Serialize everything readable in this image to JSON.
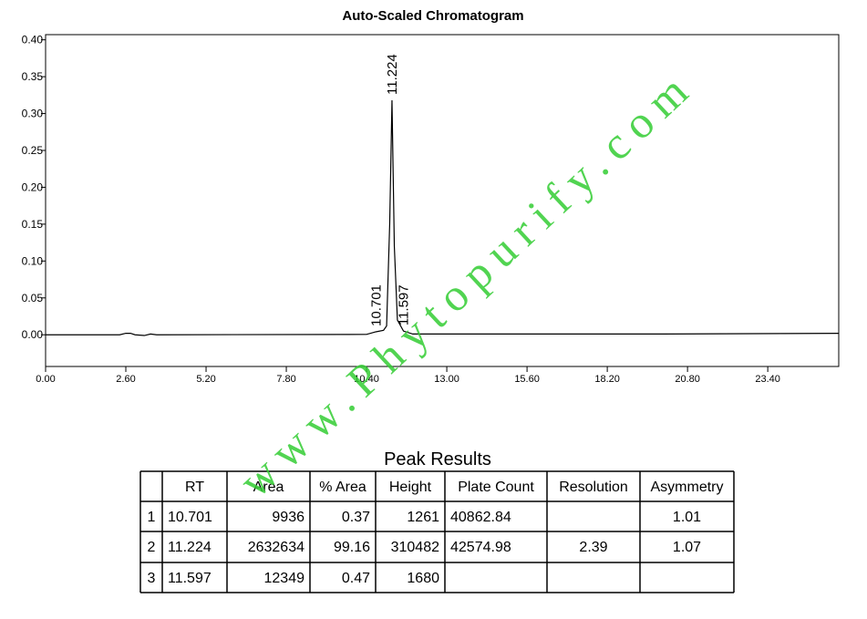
{
  "chart_data": {
    "type": "line",
    "title": "Auto-Scaled Chromatogram",
    "x": [
      0,
      2.4,
      2.6,
      2.75,
      2.9,
      3.2,
      3.4,
      3.6,
      10.4,
      10.701,
      10.95,
      11.05,
      11.15,
      11.224,
      11.3,
      11.4,
      11.597,
      11.9,
      15,
      20,
      25.7
    ],
    "series": [
      {
        "color": "#000000",
        "values": [
          0,
          0,
          0.002,
          0.002,
          0,
          -0.001,
          0.001,
          0,
          0.0005,
          0.004,
          0.006,
          0.012,
          0.15,
          0.318,
          0.12,
          0.02,
          0.005,
          0.001,
          0.001,
          0.001,
          0.002
        ]
      }
    ],
    "xlim": [
      0,
      25.7
    ],
    "ylim": [
      -0.043,
      0.407
    ],
    "xticks": [
      {
        "value": 0,
        "label": "0.00"
      },
      {
        "value": 2.6,
        "label": "2.60"
      },
      {
        "value": 5.2,
        "label": "5.20"
      },
      {
        "value": 7.8,
        "label": "7.80"
      },
      {
        "value": 10.4,
        "label": "10.40"
      },
      {
        "value": 13,
        "label": "13.00"
      },
      {
        "value": 15.6,
        "label": "15.60"
      },
      {
        "value": 18.2,
        "label": "18.20"
      },
      {
        "value": 20.8,
        "label": "20.80"
      },
      {
        "value": 23.4,
        "label": "23.40"
      }
    ],
    "yticks": [
      {
        "value": 0,
        "label": "0.00"
      },
      {
        "value": 0.05,
        "label": "0.05"
      },
      {
        "value": 0.1,
        "label": "0.10"
      },
      {
        "value": 0.15,
        "label": "0.15"
      },
      {
        "value": 0.2,
        "label": "0.20"
      },
      {
        "value": 0.25,
        "label": "0.25"
      },
      {
        "value": 0.3,
        "label": "0.30"
      },
      {
        "value": 0.35,
        "label": "0.35"
      },
      {
        "value": 0.4,
        "label": "0.40"
      }
    ],
    "peak_labels": [
      10.701,
      11.224,
      11.597
    ],
    "peak_heights": [
      0.004,
      0.318,
      0.005
    ]
  },
  "table": {
    "title": "Peak Results",
    "header": [
      null,
      "RT",
      "Area",
      "% Area",
      "Height",
      "Plate Count",
      "Resolution",
      "Asymmetry"
    ],
    "rows": [
      [
        "1",
        "10.701",
        "9936",
        "0.37",
        "1261",
        "40862.84",
        null,
        "1.01"
      ],
      [
        "2",
        "11.224",
        "2632634",
        "99.16",
        "310482",
        "42574.98",
        "2.39",
        "1.07"
      ],
      [
        "3",
        "11.597",
        "12349",
        "0.47",
        "1680",
        null,
        null,
        null
      ]
    ]
  },
  "watermark": "www.Phytopurify.com"
}
